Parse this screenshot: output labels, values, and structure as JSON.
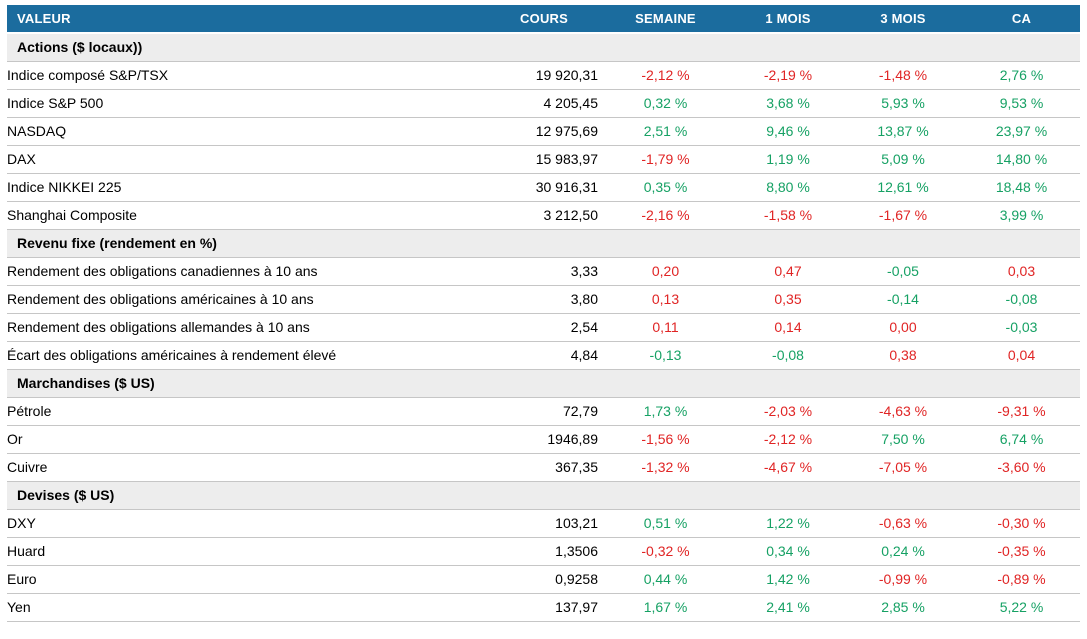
{
  "colors": {
    "header_bg": "#1B6C9E",
    "header_text": "#FFFFFF",
    "section_bg": "#EDEDED",
    "border": "#C6C6C6",
    "positive_green": "#16A164",
    "negative_red": "#E02424"
  },
  "chart_data": {
    "type": "table",
    "columns": [
      "VALEUR",
      "COURS",
      "SEMAINE",
      "1 MOIS",
      "3 MOIS",
      "CA"
    ],
    "sections": [
      {
        "title": "Actions ($ locaux))",
        "rows": [
          {
            "label": "Indice composé S&P/TSX",
            "cours": "19 920,31",
            "cells": [
              {
                "text": "-2,12 %",
                "color": "red"
              },
              {
                "text": "-2,19 %",
                "color": "red"
              },
              {
                "text": "-1,48 %",
                "color": "red"
              },
              {
                "text": "2,76 %",
                "color": "green"
              }
            ]
          },
          {
            "label": "Indice S&P 500",
            "cours": "4 205,45",
            "cells": [
              {
                "text": "0,32 %",
                "color": "green"
              },
              {
                "text": "3,68 %",
                "color": "green"
              },
              {
                "text": "5,93 %",
                "color": "green"
              },
              {
                "text": "9,53 %",
                "color": "green"
              }
            ]
          },
          {
            "label": "NASDAQ",
            "cours": "12 975,69",
            "cells": [
              {
                "text": "2,51 %",
                "color": "green"
              },
              {
                "text": "9,46 %",
                "color": "green"
              },
              {
                "text": "13,87 %",
                "color": "green"
              },
              {
                "text": "23,97 %",
                "color": "green"
              }
            ]
          },
          {
            "label": "DAX",
            "cours": "15 983,97",
            "cells": [
              {
                "text": "-1,79 %",
                "color": "red"
              },
              {
                "text": "1,19 %",
                "color": "green"
              },
              {
                "text": "5,09 %",
                "color": "green"
              },
              {
                "text": "14,80 %",
                "color": "green"
              }
            ]
          },
          {
            "label": "Indice NIKKEI 225",
            "cours": "30 916,31",
            "cells": [
              {
                "text": "0,35 %",
                "color": "green"
              },
              {
                "text": "8,80 %",
                "color": "green"
              },
              {
                "text": "12,61 %",
                "color": "green"
              },
              {
                "text": "18,48 %",
                "color": "green"
              }
            ]
          },
          {
            "label": "Shanghai Composite",
            "cours": "3 212,50",
            "cells": [
              {
                "text": "-2,16 %",
                "color": "red"
              },
              {
                "text": "-1,58 %",
                "color": "red"
              },
              {
                "text": "-1,67 %",
                "color": "red"
              },
              {
                "text": "3,99 %",
                "color": "green"
              }
            ]
          }
        ]
      },
      {
        "title": "Revenu fixe (rendement en %)",
        "rows": [
          {
            "label": "Rendement des obligations canadiennes à 10 ans",
            "cours": "3,33",
            "cells": [
              {
                "text": "0,20",
                "color": "red"
              },
              {
                "text": "0,47",
                "color": "red"
              },
              {
                "text": "-0,05",
                "color": "green"
              },
              {
                "text": "0,03",
                "color": "red"
              }
            ]
          },
          {
            "label": "Rendement des obligations américaines à 10 ans",
            "cours": "3,80",
            "cells": [
              {
                "text": "0,13",
                "color": "red"
              },
              {
                "text": "0,35",
                "color": "red"
              },
              {
                "text": "-0,14",
                "color": "green"
              },
              {
                "text": "-0,08",
                "color": "green"
              }
            ]
          },
          {
            "label": "Rendement des obligations allemandes à 10 ans",
            "cours": "2,54",
            "cells": [
              {
                "text": "0,11",
                "color": "red"
              },
              {
                "text": "0,14",
                "color": "red"
              },
              {
                "text": "0,00",
                "color": "red"
              },
              {
                "text": "-0,03",
                "color": "green"
              }
            ]
          },
          {
            "label": "Écart des obligations américaines à rendement élevé",
            "cours": "4,84",
            "cells": [
              {
                "text": "-0,13",
                "color": "green"
              },
              {
                "text": "-0,08",
                "color": "green"
              },
              {
                "text": "0,38",
                "color": "red"
              },
              {
                "text": "0,04",
                "color": "red"
              }
            ]
          }
        ]
      },
      {
        "title": "Marchandises ($ US)",
        "rows": [
          {
            "label": "Pétrole",
            "cours": "72,79",
            "cells": [
              {
                "text": "1,73 %",
                "color": "green"
              },
              {
                "text": "-2,03 %",
                "color": "red"
              },
              {
                "text": "-4,63 %",
                "color": "red"
              },
              {
                "text": "-9,31 %",
                "color": "red"
              }
            ]
          },
          {
            "label": "Or",
            "cours": "1946,89",
            "cells": [
              {
                "text": "-1,56 %",
                "color": "red"
              },
              {
                "text": "-2,12 %",
                "color": "red"
              },
              {
                "text": "7,50 %",
                "color": "green"
              },
              {
                "text": "6,74 %",
                "color": "green"
              }
            ]
          },
          {
            "label": "Cuivre",
            "cours": "367,35",
            "cells": [
              {
                "text": "-1,32 %",
                "color": "red"
              },
              {
                "text": "-4,67 %",
                "color": "red"
              },
              {
                "text": "-7,05 %",
                "color": "red"
              },
              {
                "text": "-3,60 %",
                "color": "red"
              }
            ]
          }
        ]
      },
      {
        "title": "Devises ($ US)",
        "rows": [
          {
            "label": "DXY",
            "cours": "103,21",
            "cells": [
              {
                "text": "0,51 %",
                "color": "green"
              },
              {
                "text": "1,22 %",
                "color": "green"
              },
              {
                "text": "-0,63 %",
                "color": "red"
              },
              {
                "text": "-0,30 %",
                "color": "red"
              }
            ]
          },
          {
            "label": "Huard",
            "cours": "1,3506",
            "cells": [
              {
                "text": "-0,32 %",
                "color": "red"
              },
              {
                "text": "0,34 %",
                "color": "green"
              },
              {
                "text": "0,24 %",
                "color": "green"
              },
              {
                "text": "-0,35 %",
                "color": "red"
              }
            ]
          },
          {
            "label": "Euro",
            "cours": "0,9258",
            "cells": [
              {
                "text": "0,44 %",
                "color": "green"
              },
              {
                "text": "1,42 %",
                "color": "green"
              },
              {
                "text": "-0,99 %",
                "color": "red"
              },
              {
                "text": "-0,89 %",
                "color": "red"
              }
            ]
          },
          {
            "label": "Yen",
            "cours": "137,97",
            "cells": [
              {
                "text": "1,67 %",
                "color": "green"
              },
              {
                "text": "2,41 %",
                "color": "green"
              },
              {
                "text": "2,85 %",
                "color": "green"
              },
              {
                "text": "5,22 %",
                "color": "green"
              }
            ]
          }
        ]
      }
    ]
  }
}
